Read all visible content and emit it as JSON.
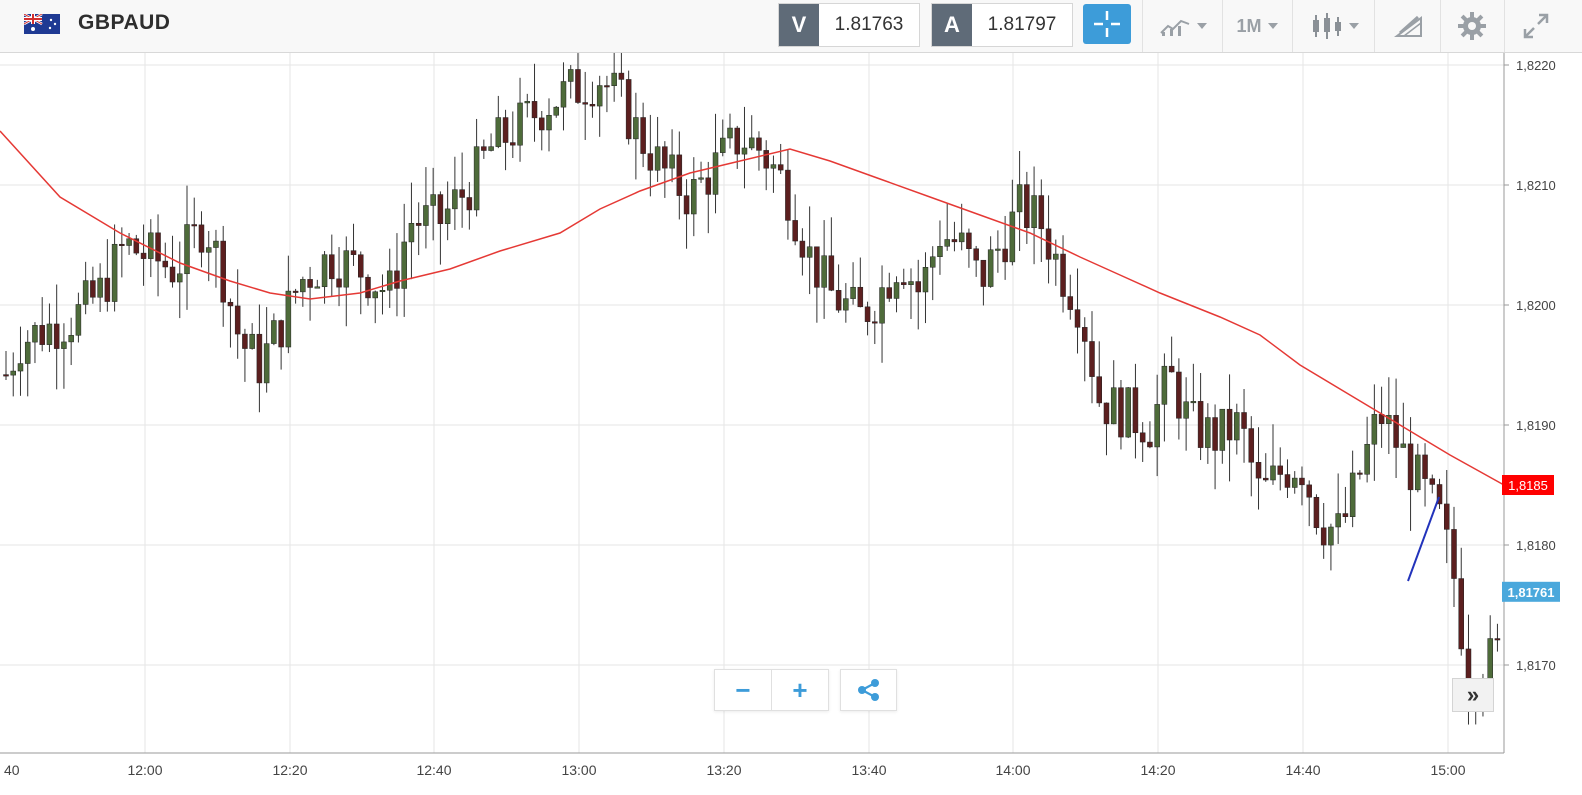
{
  "header": {
    "symbol": "GBPAUD",
    "flag_icon": "gb-au-flag-icon",
    "sell": {
      "label": "V",
      "value": "1.81763"
    },
    "buy": {
      "label": "A",
      "value": "1.81797"
    },
    "timeframe": "1M",
    "icons": [
      "crosshair-icon",
      "line-chart-icon",
      "candlestick-icon",
      "drawing-tools-icon",
      "gear-icon",
      "expand-icon"
    ]
  },
  "chart_data": {
    "type": "candlestick",
    "y_ticks": [
      "1,8220",
      "1,8210",
      "1,8200",
      "1,8190",
      "1,8180",
      "1,8170"
    ],
    "x_ticks": [
      "40",
      "12:00",
      "12:20",
      "12:40",
      "13:00",
      "13:20",
      "13:40",
      "14:00",
      "14:20",
      "14:40",
      "15:00"
    ],
    "ylim": [
      1.81615,
      1.82225
    ],
    "ma_label": "1,8185",
    "current_price_label": "1,81761",
    "colors": {
      "up": "#4e6b3a",
      "down": "#5c1f1f",
      "ma": "#e53935",
      "ma_label_bg": "#ff0000",
      "price_label_bg": "#4aa8dc",
      "trend": "#2233bb",
      "grid": "#e6e6e6"
    }
  },
  "controls": {
    "zoom_out_label": "−",
    "zoom_in_label": "+",
    "share_icon": "share-icon",
    "scroll_label": "»"
  }
}
